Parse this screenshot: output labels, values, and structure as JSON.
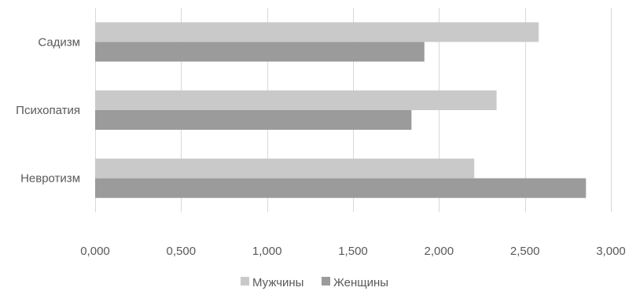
{
  "chart_data": {
    "type": "bar",
    "orientation": "horizontal",
    "categories": [
      "Садизм",
      "Психопатия",
      "Невротизм"
    ],
    "series": [
      {
        "name": "Мужчины",
        "color": "#c9c9c9",
        "values": [
          2.58,
          2.335,
          2.205
        ]
      },
      {
        "name": "Женщины",
        "color": "#9b9b9b",
        "values": [
          1.915,
          1.84,
          2.855
        ]
      }
    ],
    "xlim": [
      0,
      3
    ],
    "xticks": [
      0,
      0.5,
      1,
      1.5,
      2,
      2.5,
      3
    ],
    "xtick_labels": [
      "0,000",
      "0,500",
      "1,000",
      "1,500",
      "2,000",
      "2,500",
      "3,000"
    ],
    "grid": true,
    "legend_position": "bottom"
  }
}
